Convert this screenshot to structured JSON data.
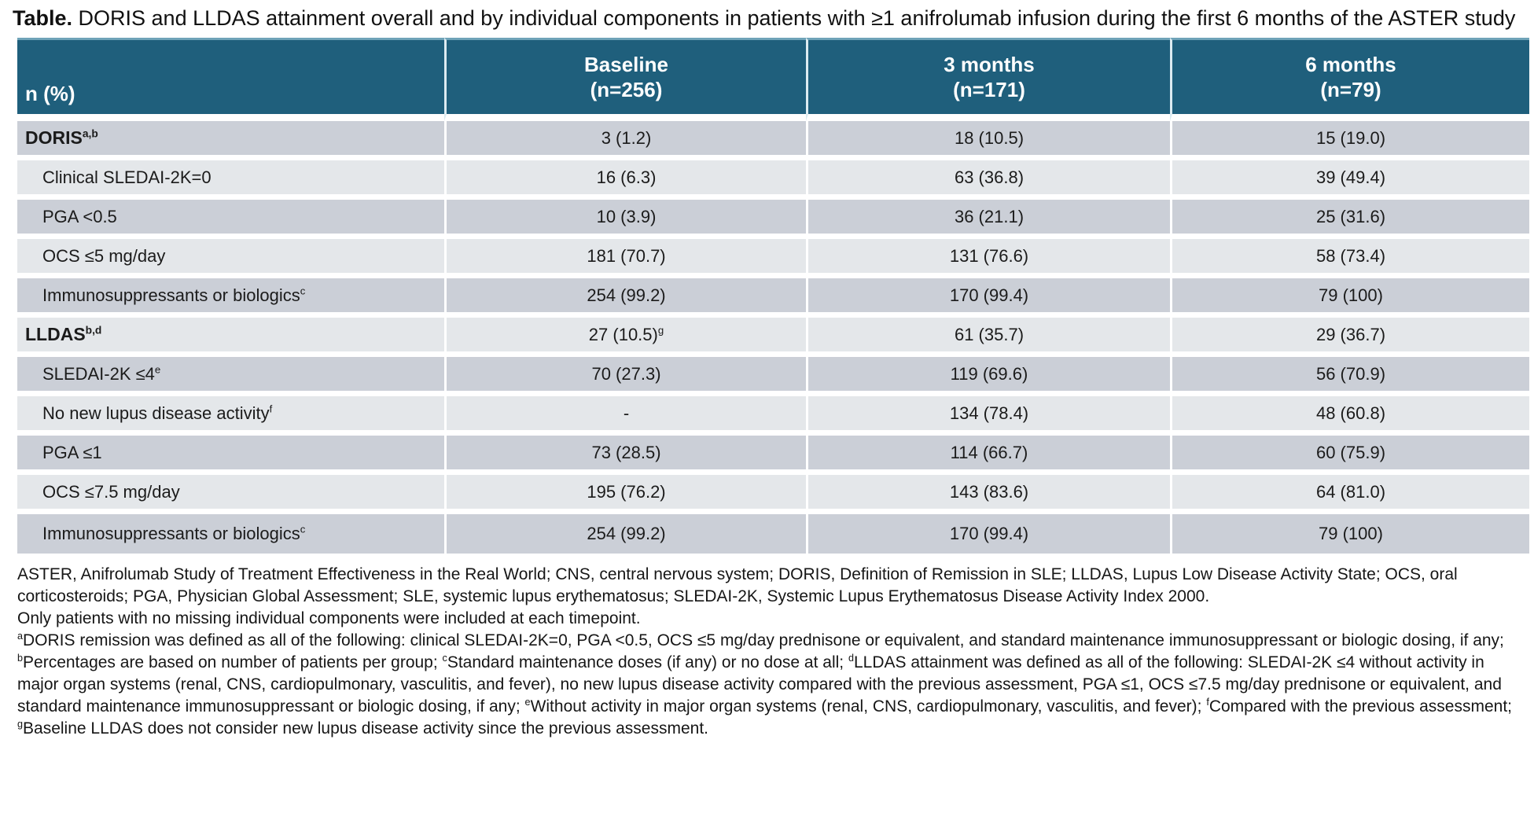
{
  "title": {
    "prefix": "Table.",
    "text": " DORIS and LLDAS attainment overall and by individual components in patients with ≥1 anifrolumab infusion during the first 6 months of the ASTER study"
  },
  "colors": {
    "header_bg": "#1f5f7c",
    "row_dark": "#cbcfd7",
    "row_light": "#e4e7ea"
  },
  "table": {
    "header": {
      "col0": "n (%)",
      "columns": [
        {
          "line1": "Baseline",
          "line2": "(n=256)"
        },
        {
          "line1": "3 months",
          "line2": "(n=171)"
        },
        {
          "line1": "6 months",
          "line2": "(n=79)"
        }
      ]
    },
    "rows": [
      {
        "label": "DORIS",
        "sup": "a,b",
        "bold": true,
        "indent": false,
        "cells": [
          {
            "v": "3 (1.2)"
          },
          {
            "v": "18 (10.5)"
          },
          {
            "v": "15 (19.0)"
          }
        ]
      },
      {
        "label": "Clinical SLEDAI-2K=0",
        "sup": "",
        "bold": false,
        "indent": true,
        "cells": [
          {
            "v": "16 (6.3)"
          },
          {
            "v": "63 (36.8)"
          },
          {
            "v": "39 (49.4)"
          }
        ]
      },
      {
        "label": "PGA <0.5",
        "sup": "",
        "bold": false,
        "indent": true,
        "cells": [
          {
            "v": "10 (3.9)"
          },
          {
            "v": "36 (21.1)"
          },
          {
            "v": "25 (31.6)"
          }
        ]
      },
      {
        "label": "OCS ≤5 mg/day",
        "sup": "",
        "bold": false,
        "indent": true,
        "cells": [
          {
            "v": "181 (70.7)"
          },
          {
            "v": "131 (76.6)"
          },
          {
            "v": "58 (73.4)"
          }
        ]
      },
      {
        "label": "Immunosuppressants or biologics",
        "sup": "c",
        "bold": false,
        "indent": true,
        "cells": [
          {
            "v": "254 (99.2)"
          },
          {
            "v": "170 (99.4)"
          },
          {
            "v": "79 (100)"
          }
        ]
      },
      {
        "label": "LLDAS",
        "sup": "b,d",
        "bold": true,
        "indent": false,
        "cells": [
          {
            "v": "27 (10.5)",
            "sup": "g"
          },
          {
            "v": "61 (35.7)"
          },
          {
            "v": "29 (36.7)"
          }
        ]
      },
      {
        "label": "SLEDAI-2K ≤4",
        "sup": "e",
        "bold": false,
        "indent": true,
        "cells": [
          {
            "v": "70 (27.3)"
          },
          {
            "v": "119 (69.6)"
          },
          {
            "v": "56 (70.9)"
          }
        ]
      },
      {
        "label": "No new lupus disease activity",
        "sup": "f",
        "bold": false,
        "indent": true,
        "cells": [
          {
            "v": "-"
          },
          {
            "v": "134 (78.4)"
          },
          {
            "v": "48 (60.8)"
          }
        ]
      },
      {
        "label": "PGA ≤1",
        "sup": "",
        "bold": false,
        "indent": true,
        "cells": [
          {
            "v": "73 (28.5)"
          },
          {
            "v": "114 (66.7)"
          },
          {
            "v": "60 (75.9)"
          }
        ]
      },
      {
        "label": "OCS ≤7.5 mg/day",
        "sup": "",
        "bold": false,
        "indent": true,
        "cells": [
          {
            "v": "195 (76.2)"
          },
          {
            "v": "143 (83.6)"
          },
          {
            "v": "64 (81.0)"
          }
        ]
      },
      {
        "label": "Immunosuppressants or biologics",
        "sup": "c",
        "bold": false,
        "indent": true,
        "cells": [
          {
            "v": "254 (99.2)"
          },
          {
            "v": "170 (99.4)"
          },
          {
            "v": "79 (100)"
          }
        ]
      }
    ]
  },
  "footnotes": {
    "paragraphs": [
      [
        {
          "t": "ASTER, Anifrolumab Study of Treatment Effectiveness in the Real World; CNS, central nervous system; DORIS, Definition of Remission in SLE; LLDAS, Lupus Low Disease Activity State; OCS, oral corticosteroids; PGA, Physician Global Assessment; SLE, systemic lupus erythematosus; SLEDAI-2K, Systemic Lupus Erythematosus Disease Activity Index 2000."
        }
      ],
      [
        {
          "t": "Only patients with no missing individual components were included at each timepoint."
        }
      ],
      [
        {
          "s": "a"
        },
        {
          "t": "DORIS remission was defined as all of the following: clinical SLEDAI-2K=0, PGA <0.5, OCS ≤5 mg/day prednisone or equivalent, and standard maintenance immunosuppressant or biologic dosing, if any; "
        },
        {
          "s": "b"
        },
        {
          "t": "Percentages are based on number of patients per group; "
        },
        {
          "s": "c"
        },
        {
          "t": "Standard maintenance doses (if any) or no dose at all; "
        },
        {
          "s": "d"
        },
        {
          "t": "LLDAS attainment was defined as all of the following: SLEDAI-2K ≤4 without activity in major organ systems (renal, CNS, cardiopulmonary, vasculitis, and fever), no new lupus disease activity compared with the previous assessment, PGA ≤1, OCS ≤7.5 mg/day prednisone or equivalent, and standard maintenance immunosuppressant or biologic dosing, if any; "
        },
        {
          "s": "e"
        },
        {
          "t": "Without activity in major organ systems (renal, CNS, cardiopulmonary, vasculitis, and fever); "
        },
        {
          "s": "f"
        },
        {
          "t": "Compared with the previous assessment; "
        },
        {
          "s": "g"
        },
        {
          "t": "Baseline LLDAS does not consider new lupus disease activity since the previous assessment."
        }
      ]
    ]
  }
}
